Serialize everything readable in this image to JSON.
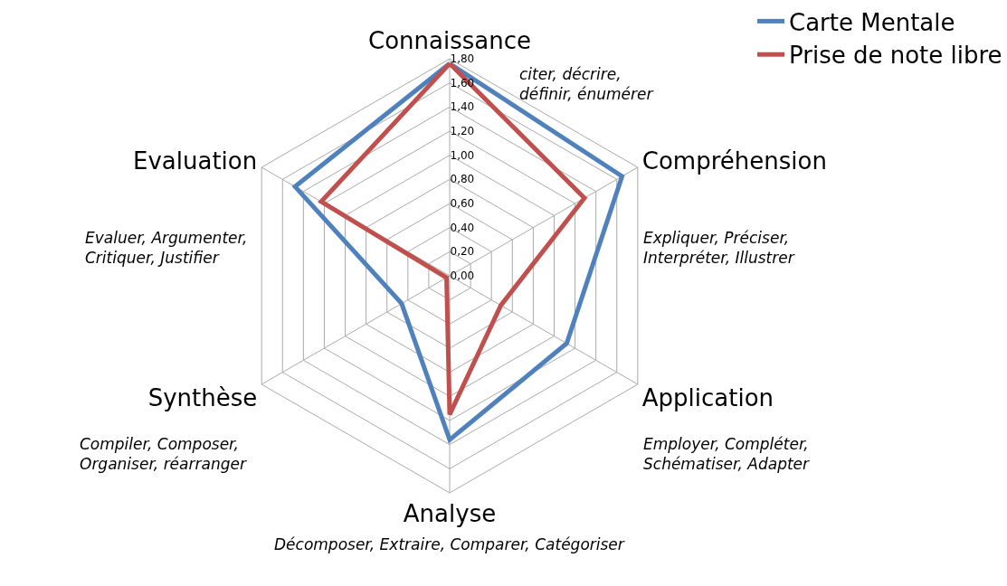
{
  "chart_data": {
    "type": "radar",
    "categories": [
      "Connaissance",
      "Compréhension",
      "Application",
      "Analyse",
      "Synthèse",
      "Evaluation"
    ],
    "series": [
      {
        "name": "Carte Mentale",
        "color": "#4f81bd",
        "values": [
          1.76,
          1.65,
          1.12,
          1.36,
          0.46,
          1.48
        ]
      },
      {
        "name": "Prise de note libre",
        "color": "#c0504d",
        "values": [
          1.76,
          1.29,
          0.49,
          1.15,
          0.03,
          1.23
        ]
      }
    ],
    "ylim": [
      0,
      1.8
    ],
    "yticks": [
      {
        "value": 0,
        "label": "0,00"
      },
      {
        "value": 0.2,
        "label": "0,20"
      },
      {
        "value": 0.4,
        "label": "0,40"
      },
      {
        "value": 0.6,
        "label": "0,60"
      },
      {
        "value": 0.8,
        "label": "0,80"
      },
      {
        "value": 1.0,
        "label": "1,00"
      },
      {
        "value": 1.2,
        "label": "1,20"
      },
      {
        "value": 1.4,
        "label": "1,40"
      },
      {
        "value": 1.6,
        "label": "1,60"
      },
      {
        "value": 1.8,
        "label": "1,80"
      }
    ],
    "annotations": [
      "citer, décrire,\ndéfinir, énumérer",
      "Expliquer, Préciser,\nInterpréter, Illustrer",
      "Employer, Compléter,\nSchématiser, Adapter",
      "Décomposer, Extraire, Comparer, Catégoriser",
      "Compiler, Composer,\nOrganiser, réarranger",
      "Evaluer, Argumenter,\nCritiquer, Justifier"
    ],
    "grid": true,
    "legend": "top right",
    "marker": "none",
    "line_style": "solid"
  }
}
